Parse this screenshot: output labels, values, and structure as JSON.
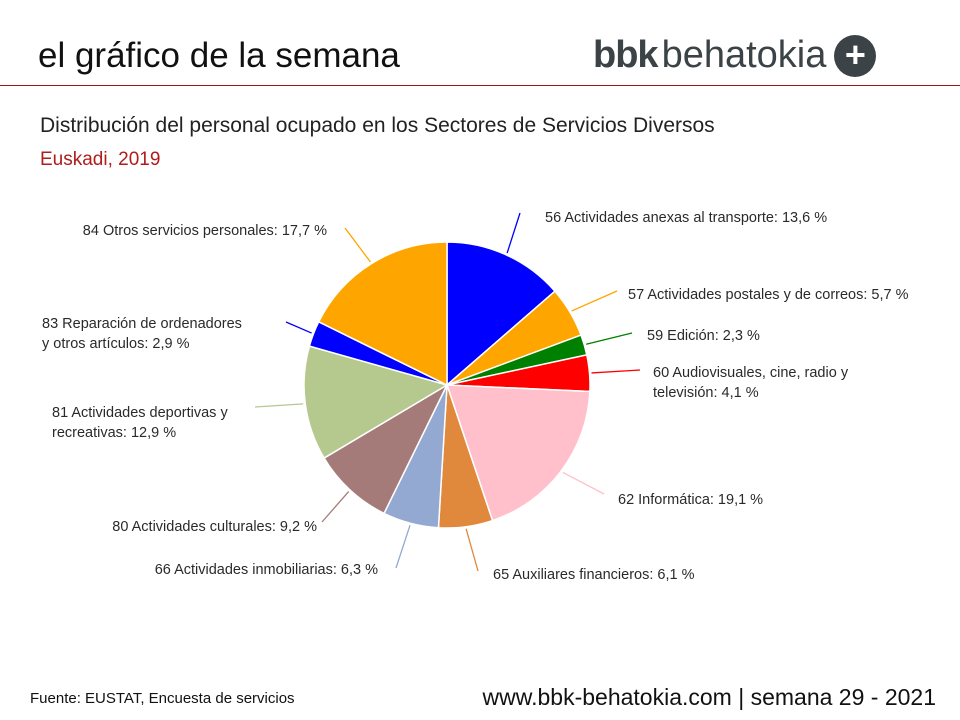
{
  "header": {
    "title": "el gráfico de la semana",
    "logo": "bbkbehatokia",
    "logo_bbk": "bbk",
    "logo_rest": "behatokia",
    "logo_plus": "+",
    "rule_color": "#a01818"
  },
  "chart_data": {
    "type": "pie",
    "title": "Distribución del personal ocupado en los Sectores de Servicios Diversos",
    "subtitle": "Euskadi, 2019",
    "start": "top",
    "direction": "clockwise",
    "slices": [
      {
        "label": "56 Actividades anexas al transporte: 13,6 %",
        "value": 13.6,
        "color": "#0000ff"
      },
      {
        "label": "57 Actividades postales y de correos: 5,7 %",
        "value": 5.7,
        "color": "#ffa500"
      },
      {
        "label": "59 Edición: 2,3 %",
        "value": 2.3,
        "color": "#008000"
      },
      {
        "label": "60 Audiovisuales, cine, radio y televisión: 4,1 %",
        "label_lines": [
          "60 Audiovisuales, cine, radio y",
          "televisión: 4,1 %"
        ],
        "value": 4.1,
        "color": "#ff0000"
      },
      {
        "label": "62 Informática: 19,1 %",
        "value": 19.1,
        "color": "#ffc0cb"
      },
      {
        "label": "65 Auxiliares financieros: 6,1 %",
        "value": 6.1,
        "color": "#e0883c"
      },
      {
        "label": "66 Actividades inmobiliarias: 6,3 %",
        "value": 6.3,
        "color": "#94a9d2"
      },
      {
        "label": "80 Actividades culturales: 9,2 %",
        "value": 9.2,
        "color": "#a57b79"
      },
      {
        "label": "81 Actividades deportivas y recreativas: 12,9 %",
        "label_lines": [
          "81 Actividades deportivas y",
          "recreativas: 12,9 %"
        ],
        "value": 12.9,
        "color": "#b5c98f"
      },
      {
        "label": "83 Reparación de ordenadores y otros artículos: 2,9 %",
        "label_lines": [
          "83 Reparación de ordenadores",
          "y otros artículos: 2,9 %"
        ],
        "value": 2.9,
        "color": "#0000ff"
      },
      {
        "label": "84 Otros servicios personales: 17,7 %",
        "value": 17.7,
        "color": "#ffa500"
      }
    ]
  },
  "footer": {
    "source": "Fuente:  EUSTAT, Encuesta de servicios",
    "site": "www.bbk-behatokia.com | semana 29 - 2021"
  }
}
